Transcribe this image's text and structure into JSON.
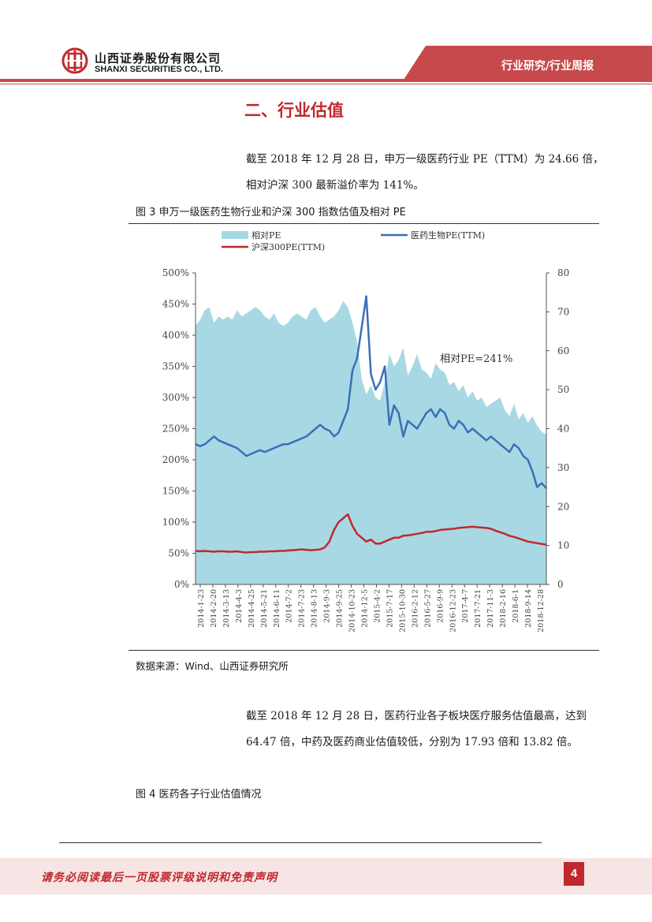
{
  "header": {
    "company_cn": "山西证券股份有限公司",
    "company_en": "SHANXI SECURITIES CO., LTD.",
    "report_type": "行业研究/行业周报",
    "brand_color": "#c0282d"
  },
  "section": {
    "title": "二、行业估值"
  },
  "paragraphs": {
    "p1": "截至 2018 年 12 月 28 日，申万一级医药行业 PE（TTM）为 24.66 倍，相对沪深 300 最新溢价率为 141%。",
    "p2": "截至 2018 年 12 月 28 日，医药行业各子板块医疗服务估值最高，达到 64.47 倍，中药及医药商业估值较低，分别为 17.93 倍和 13.82 倍。"
  },
  "figure3": {
    "caption": "图 3  申万一级医药生物行业和沪深 300 指数估值及相对 PE"
  },
  "source": "数据来源：Wind、山西证券研究所",
  "figure4": {
    "caption": "图 4  医药各子行业估值情况"
  },
  "footer": {
    "disclaimer": "请务必阅读最后一页股票评级说明和免责声明",
    "page": "4"
  },
  "chart_data": {
    "type": "area+line",
    "title": "申万一级医药生物行业和沪深 300 指数估值及相对 PE",
    "annotation": "相对PE=241%",
    "legend": [
      "相对PE",
      "医药生物PE(TTM)",
      "沪深300PE(TTM)"
    ],
    "left_axis": {
      "min": 0,
      "max": 500,
      "ticks": [
        "0%",
        "50%",
        "100%",
        "150%",
        "200%",
        "250%",
        "300%",
        "350%",
        "400%",
        "450%",
        "500%"
      ]
    },
    "right_axis": {
      "min": 0,
      "max": 80,
      "ticks": [
        "0",
        "10",
        "20",
        "30",
        "40",
        "50",
        "60",
        "70",
        "80"
      ]
    },
    "x_labels": [
      "2014-1-23",
      "2014-2-20",
      "2014-3-13",
      "2014-4-3",
      "2014-4-25",
      "2014-5-21",
      "2014-6-11",
      "2014-7-2",
      "2014-7-23",
      "2014-8-13",
      "2014-9-3",
      "2014-9-25",
      "2014-10-23",
      "2014-12-5",
      "2015-4-2",
      "2015-7-17",
      "2015-10-30",
      "2016-2-12",
      "2016-5-27",
      "2016-9-9",
      "2016-12-23",
      "2017-4-7",
      "2017-7-21",
      "2017-11-3",
      "2018-2-16",
      "2018-6-1",
      "2018-9-14",
      "2018-12-28"
    ],
    "series": [
      {
        "name": "相对PE",
        "axis": "left",
        "color": "#a8d8e4",
        "values": [
          415,
          425,
          440,
          445,
          420,
          430,
          425,
          430,
          425,
          440,
          430,
          435,
          440,
          445,
          440,
          430,
          425,
          435,
          420,
          415,
          420,
          430,
          435,
          430,
          425,
          440,
          445,
          430,
          420,
          425,
          430,
          440,
          455,
          445,
          420,
          390,
          330,
          305,
          320,
          300,
          295,
          325,
          370,
          350,
          360,
          380,
          335,
          350,
          370,
          345,
          340,
          330,
          355,
          345,
          340,
          320,
          325,
          310,
          320,
          300,
          310,
          295,
          300,
          285,
          290,
          295,
          300,
          280,
          270,
          290,
          265,
          275,
          260,
          270,
          255,
          245,
          240
        ]
      },
      {
        "name": "医药生物PE(TTM)",
        "axis": "right",
        "color": "#3a6fb8",
        "values": [
          36,
          35.5,
          36,
          37,
          38,
          37,
          36.5,
          36,
          35.5,
          35,
          34,
          33,
          33.5,
          34,
          34.5,
          34,
          34.5,
          35,
          35.5,
          36,
          36,
          36.5,
          37,
          37.5,
          38,
          39,
          40,
          41,
          40,
          39.5,
          38,
          39,
          42,
          45,
          55,
          58,
          66,
          74,
          54,
          50,
          52,
          56,
          41,
          46,
          44,
          38,
          42,
          41,
          40,
          42,
          44,
          45,
          43,
          45,
          44,
          41,
          40,
          42,
          41,
          39,
          40,
          39,
          38,
          37,
          38,
          37,
          36,
          35,
          34,
          36,
          35,
          33,
          32,
          29,
          25,
          26,
          24.66
        ]
      },
      {
        "name": "沪深300PE(TTM)",
        "axis": "right",
        "color": "#c0282d",
        "values": [
          8.6,
          8.5,
          8.6,
          8.5,
          8.4,
          8.5,
          8.5,
          8.4,
          8.4,
          8.5,
          8.3,
          8.2,
          8.3,
          8.3,
          8.4,
          8.4,
          8.5,
          8.5,
          8.6,
          8.6,
          8.7,
          8.8,
          8.9,
          9,
          8.9,
          8.8,
          8.9,
          9,
          9.5,
          11,
          14,
          16,
          17,
          18,
          15,
          13,
          12,
          11,
          11.5,
          10.5,
          10.5,
          11,
          11.5,
          12,
          12,
          12.5,
          12.6,
          12.8,
          13,
          13.2,
          13.5,
          13.5,
          13.7,
          14,
          14.1,
          14.2,
          14.3,
          14.5,
          14.6,
          14.7,
          14.8,
          14.7,
          14.6,
          14.5,
          14.3,
          13.8,
          13.4,
          13,
          12.5,
          12.2,
          11.8,
          11.4,
          11,
          10.8,
          10.6,
          10.4,
          10.2
        ]
      }
    ]
  }
}
